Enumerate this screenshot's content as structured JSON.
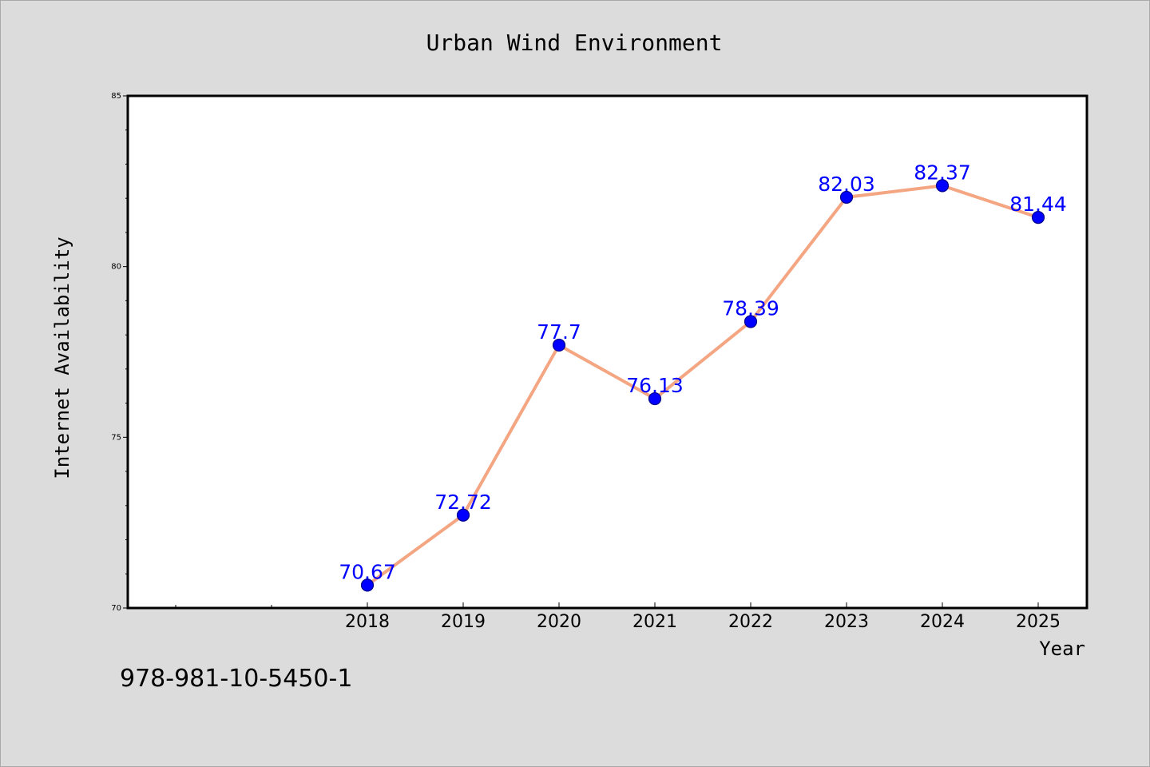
{
  "chart_data": {
    "type": "line",
    "title": "Urban Wind Environment",
    "xlabel": "Year",
    "ylabel": "Internet Availability",
    "categories": [
      "2018",
      "2019",
      "2020",
      "2021",
      "2022",
      "2023",
      "2024",
      "2025"
    ],
    "series": [
      {
        "values": [
          70.67,
          72.72,
          77.7,
          76.13,
          78.39,
          82.03,
          82.37,
          81.44
        ],
        "labels": [
          "70.67",
          "72.72",
          "77.7",
          "76.13",
          "78.39",
          "82.03",
          "82.37",
          "81.44"
        ]
      }
    ],
    "ylim": [
      70,
      85
    ],
    "yticks": [
      "70",
      "75",
      "80",
      "85"
    ],
    "grid": false,
    "legend": "none",
    "colors": {
      "line": "#f4a582",
      "marker": "#0000ff",
      "marker_edge": "#00008b",
      "data_label": "#0000ff",
      "background": "#dcdcdc",
      "plot_background": "#ffffff"
    }
  },
  "footer": {
    "code": "978-981-10-5450-1"
  }
}
